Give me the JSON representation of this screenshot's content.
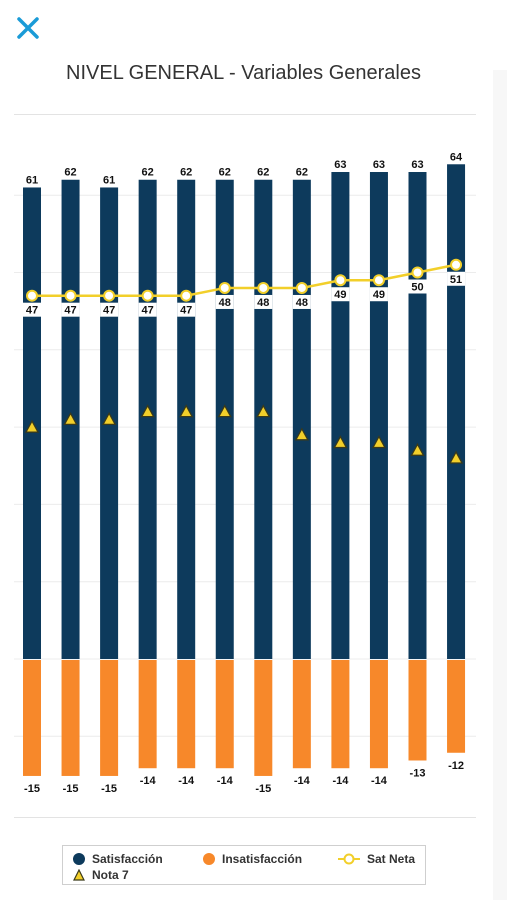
{
  "ui": {
    "close_icon": "close-x-icon",
    "accent": "#1a9bd7"
  },
  "colors": {
    "satisfaccion": "#0d3a5c",
    "insatisfaccion": "#f7882a",
    "sat_neta": "#f2cf2a",
    "nota7": "#f2cf2a"
  },
  "chart_data": {
    "type": "bar",
    "title": "NIVEL GENERAL - Variables Generales",
    "categories": [
      "",
      "",
      "",
      "",
      "",
      "",
      "",
      "",
      "",
      "",
      "",
      ""
    ],
    "series": [
      {
        "name": "Satisfacción",
        "type": "bar",
        "values": [
          61,
          62,
          61,
          62,
          62,
          62,
          62,
          62,
          63,
          63,
          63,
          64
        ]
      },
      {
        "name": "Insatisfacción",
        "type": "bar",
        "values": [
          -15,
          -15,
          -15,
          -14,
          -14,
          -14,
          -15,
          -14,
          -14,
          -14,
          -13,
          -12
        ]
      },
      {
        "name": "Sat Neta",
        "type": "line",
        "values": [
          47,
          47,
          47,
          47,
          47,
          48,
          48,
          48,
          49,
          49,
          50,
          51
        ]
      },
      {
        "name": "Nota 7",
        "type": "marker",
        "values": [
          30,
          31,
          31,
          32,
          32,
          32,
          32,
          29,
          28,
          28,
          27,
          26
        ]
      }
    ],
    "data_labels": {
      "satisfaccion": [
        "61",
        "62",
        "61",
        "62",
        "62",
        "62",
        "62",
        "62",
        "63",
        "63",
        "63",
        "64"
      ],
      "insatisfaccion": [
        "-15",
        "-15",
        "-15",
        "-14",
        "-14",
        "-14",
        "-15",
        "-14",
        "-14",
        "-14",
        "-13",
        "-12"
      ],
      "sat_neta": [
        "47",
        "47",
        "47",
        "47",
        "47",
        "48",
        "48",
        "48",
        "49",
        "49",
        "50",
        "51"
      ]
    },
    "ylim": [
      -16,
      66
    ],
    "grid": true,
    "legend_position": "bottom"
  },
  "legend": {
    "items": [
      {
        "label": "Satisfacción",
        "icon": "filled-circle"
      },
      {
        "label": "Insatisfacción",
        "icon": "filled-circle"
      },
      {
        "label": "Sat Neta",
        "icon": "circle-line"
      },
      {
        "label": "Nota 7",
        "icon": "triangle"
      }
    ]
  }
}
